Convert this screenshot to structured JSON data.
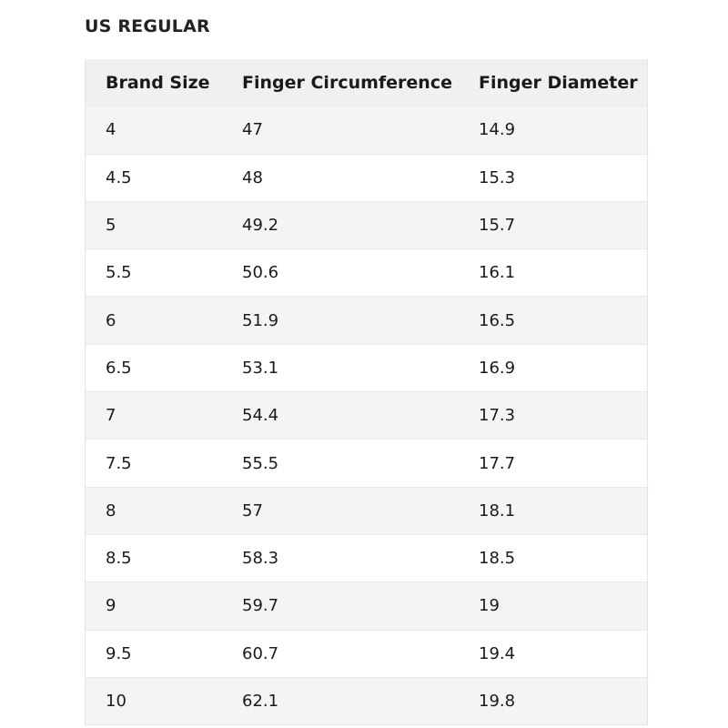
{
  "title": "US REGULAR",
  "table": {
    "headers": [
      "Brand Size",
      "Finger Circumference",
      "Finger Diameter"
    ],
    "rows": [
      [
        "4",
        "47",
        "14.9"
      ],
      [
        "4.5",
        "48",
        "15.3"
      ],
      [
        "5",
        "49.2",
        "15.7"
      ],
      [
        "5.5",
        "50.6",
        "16.1"
      ],
      [
        "6",
        "51.9",
        "16.5"
      ],
      [
        "6.5",
        "53.1",
        "16.9"
      ],
      [
        "7",
        "54.4",
        "17.3"
      ],
      [
        "7.5",
        "55.5",
        "17.7"
      ],
      [
        "8",
        "57",
        "18.1"
      ],
      [
        "8.5",
        "58.3",
        "18.5"
      ],
      [
        "9",
        "59.7",
        "19"
      ],
      [
        "9.5",
        "60.7",
        "19.4"
      ],
      [
        "10",
        "62.1",
        "19.8"
      ]
    ]
  }
}
